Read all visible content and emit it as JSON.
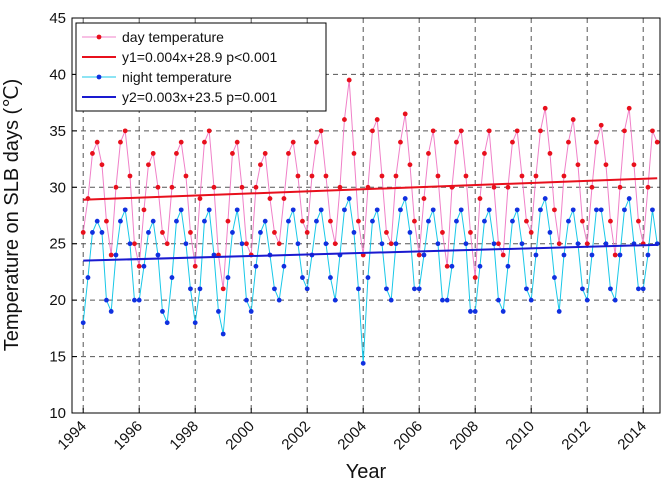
{
  "chart_data": {
    "type": "line",
    "ylabel": "Temperature on SLB days (℃)",
    "xlabel": "Year",
    "xlim": [
      1993.6,
      2014.6
    ],
    "xticks": [
      1994,
      1996,
      1998,
      2000,
      2002,
      2004,
      2006,
      2008,
      2010,
      2012,
      2014
    ],
    "ylim": [
      10,
      45
    ],
    "yticks": [
      10,
      15,
      20,
      25,
      30,
      35,
      40,
      45
    ],
    "grid": true,
    "legend": "upper left",
    "x": [
      1994,
      1994.17,
      1994.33,
      1994.5,
      1994.67,
      1994.83,
      1995,
      1995.17,
      1995.33,
      1995.5,
      1995.67,
      1995.83,
      1996,
      1996.17,
      1996.33,
      1996.5,
      1996.67,
      1996.83,
      1997,
      1997.17,
      1997.33,
      1997.5,
      1997.67,
      1997.83,
      1998,
      1998.17,
      1998.33,
      1998.5,
      1998.67,
      1998.83,
      1999,
      1999.17,
      1999.33,
      1999.5,
      1999.67,
      1999.83,
      2000,
      2000.17,
      2000.33,
      2000.5,
      2000.67,
      2000.83,
      2001,
      2001.17,
      2001.33,
      2001.5,
      2001.67,
      2001.83,
      2002,
      2002.17,
      2002.33,
      2002.5,
      2002.67,
      2002.83,
      2003,
      2003.17,
      2003.33,
      2003.5,
      2003.67,
      2003.83,
      2004,
      2004.17,
      2004.33,
      2004.5,
      2004.67,
      2004.83,
      2005,
      2005.17,
      2005.33,
      2005.5,
      2005.67,
      2005.83,
      2006,
      2006.17,
      2006.33,
      2006.5,
      2006.67,
      2006.83,
      2007,
      2007.17,
      2007.33,
      2007.5,
      2007.67,
      2007.83,
      2008,
      2008.17,
      2008.33,
      2008.5,
      2008.67,
      2008.83,
      2009,
      2009.17,
      2009.33,
      2009.5,
      2009.67,
      2009.83,
      2010,
      2010.17,
      2010.33,
      2010.5,
      2010.67,
      2010.83,
      2011,
      2011.17,
      2011.33,
      2011.5,
      2011.67,
      2011.83,
      2012,
      2012.17,
      2012.33,
      2012.5,
      2012.67,
      2012.83,
      2013,
      2013.17,
      2013.33,
      2013.5,
      2013.67,
      2013.83,
      2014,
      2014.17,
      2014.33,
      2014.5
    ],
    "series": [
      {
        "name": "day temperature",
        "color": "#f080c8",
        "marker_color": "#e8101c",
        "values": [
          26,
          29,
          33,
          34,
          32,
          27,
          24,
          30,
          34,
          35,
          31,
          25,
          23,
          28,
          32,
          33,
          30,
          26,
          25,
          30,
          33,
          34,
          31,
          26,
          23,
          29,
          34,
          35,
          30,
          24,
          21,
          27,
          33,
          34,
          30,
          25,
          24,
          30,
          32,
          33,
          29,
          26,
          25,
          29,
          33,
          34,
          31,
          27,
          26,
          31,
          34,
          35,
          31,
          27,
          25,
          30,
          36,
          39.5,
          33,
          27,
          24,
          30,
          35,
          36,
          31,
          26,
          25,
          31,
          34,
          36.5,
          32,
          27,
          24,
          29,
          33,
          35,
          31,
          26,
          23,
          30,
          34,
          35,
          31,
          26,
          22,
          29,
          33,
          35,
          30,
          25,
          24,
          30,
          34,
          35,
          31,
          27,
          26,
          31,
          35,
          37,
          33,
          28,
          25,
          31,
          34,
          36,
          32,
          27,
          25,
          30,
          34,
          35.5,
          32,
          27,
          24,
          30,
          35,
          37,
          32,
          27,
          25,
          30,
          35,
          34
        ]
      },
      {
        "name": "y1=0.004x+28.9 p<0.001",
        "color": "#e8101c",
        "x": [
          1994,
          2014.5
        ],
        "values": [
          28.9,
          30.8
        ]
      },
      {
        "name": "night temperature",
        "color": "#18c8e8",
        "marker_color": "#1030e0",
        "values": [
          18,
          22,
          26,
          27,
          26,
          20,
          19,
          24,
          27,
          28,
          25,
          20,
          20,
          23,
          26,
          27,
          24,
          19,
          18,
          22,
          27,
          28,
          25,
          21,
          18,
          21,
          27,
          28,
          24,
          19,
          17,
          22,
          26,
          28,
          25,
          20,
          19,
          23,
          26,
          27,
          24,
          21,
          20,
          23,
          27,
          28,
          25,
          22,
          21,
          24,
          27,
          28,
          25,
          22,
          20,
          24,
          28,
          29,
          26,
          21,
          14.4,
          22,
          27,
          28,
          25,
          21,
          20,
          25,
          28,
          29,
          26,
          21,
          21,
          24,
          27,
          28,
          25,
          20,
          20,
          23,
          27,
          28,
          25,
          19,
          19,
          23,
          27,
          28,
          25,
          20,
          19,
          23,
          27,
          28,
          25,
          21,
          20,
          24,
          28,
          29,
          26,
          22,
          19,
          24,
          27,
          28,
          25,
          21,
          20,
          24,
          28,
          28,
          25,
          21,
          20,
          24,
          28,
          29,
          25,
          21,
          21,
          24,
          28,
          25
        ]
      },
      {
        "name": "y2=0.003x+23.5 p=0.001",
        "color": "#1a1ad0",
        "x": [
          1994,
          2014.5
        ],
        "values": [
          23.5,
          24.9
        ]
      }
    ]
  }
}
